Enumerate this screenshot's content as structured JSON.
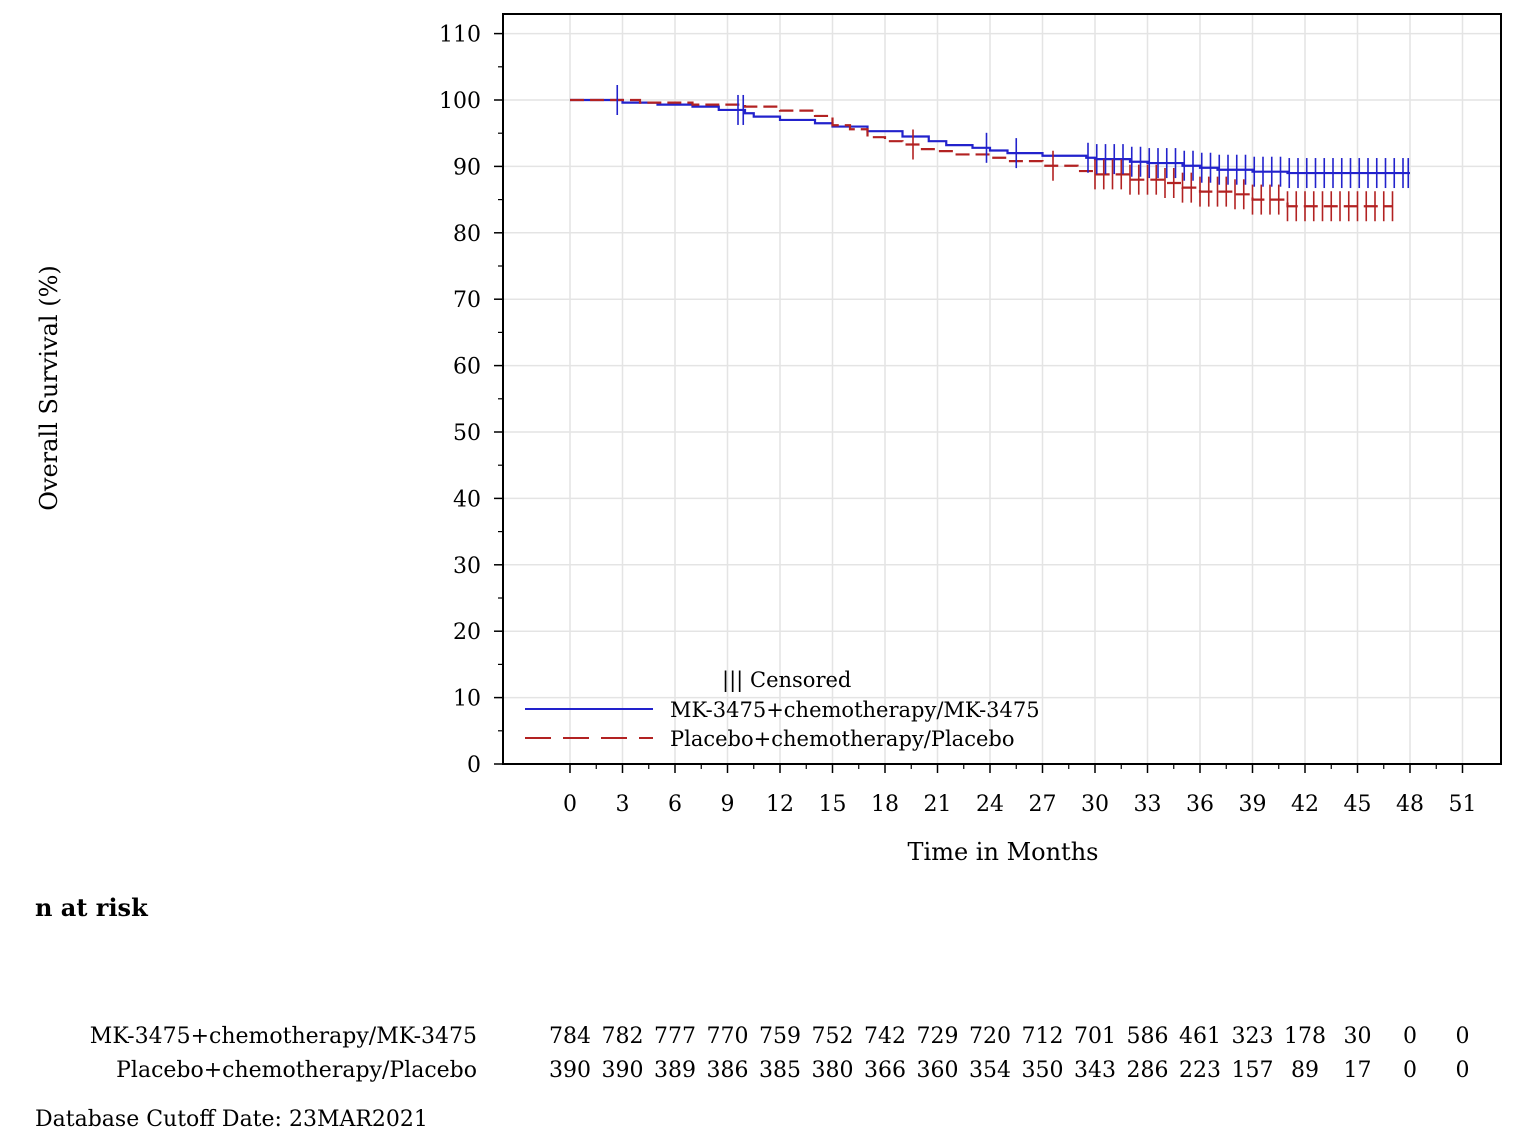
{
  "chart_data": {
    "type": "line",
    "subtype": "kaplan-meier",
    "xlabel": "Time in Months",
    "ylabel": "Overall Survival (%)",
    "xlim": [
      -5,
      54
    ],
    "ylim": [
      0,
      110
    ],
    "xticks": [
      0,
      3,
      6,
      9,
      12,
      15,
      18,
      21,
      24,
      27,
      30,
      33,
      36,
      39,
      42,
      45,
      48,
      51
    ],
    "yticks": [
      0,
      10,
      20,
      30,
      40,
      50,
      60,
      70,
      80,
      90,
      100,
      110
    ],
    "grid": true,
    "legend_placement": "bottom-left",
    "censored_label": "Censored",
    "series": [
      {
        "name": "MK-3475+chemotherapy/MK-3475",
        "color": "#2222cc",
        "line_style": "solid",
        "x": [
          0,
          3,
          5,
          7,
          8.5,
          10,
          10.5,
          12,
          14,
          15,
          17,
          19,
          20.5,
          21.5,
          23,
          24,
          25,
          27,
          29.5,
          30,
          32,
          33,
          35,
          36,
          37,
          39,
          41,
          48
        ],
        "y": [
          100,
          99.6,
          99.3,
          99,
          98.5,
          98,
          97.5,
          97,
          96.5,
          96,
          95.3,
          94.5,
          93.8,
          93.2,
          92.8,
          92.4,
          92,
          91.6,
          91.3,
          91.1,
          90.7,
          90.5,
          90.1,
          89.8,
          89.5,
          89.2,
          89,
          89
        ],
        "censor_x": [
          2.7,
          9.6,
          9.9,
          23.8,
          25.5,
          29.6,
          30.1,
          30.6,
          31.1,
          31.6,
          32.1,
          32.6,
          33.1,
          33.6,
          34.1,
          34.6,
          35.1,
          35.6,
          36.1,
          36.6,
          37.1,
          37.6,
          38.1,
          38.6,
          39.1,
          39.6,
          40.1,
          40.6,
          41.1,
          41.6,
          42.1,
          42.6,
          43.1,
          43.6,
          44.1,
          44.6,
          45.1,
          45.6,
          46.1,
          46.6,
          47.1,
          47.6,
          47.9
        ]
      },
      {
        "name": "Placebo+chemotherapy/Placebo",
        "color": "#b22222",
        "line_style": "dashed",
        "x": [
          0,
          4,
          7,
          10,
          12,
          14,
          15,
          16,
          17,
          18,
          19,
          20,
          21,
          22,
          24,
          25,
          27,
          29,
          30,
          32,
          34,
          35,
          36,
          38,
          39,
          41,
          47
        ],
        "y": [
          100,
          99.6,
          99.3,
          99,
          98.4,
          97.6,
          96.2,
          95.6,
          94.4,
          93.8,
          93.3,
          92.6,
          92.3,
          91.8,
          91.3,
          90.8,
          90.1,
          89.3,
          88.8,
          88,
          87.5,
          86.8,
          86.2,
          85.8,
          85,
          84,
          84
        ],
        "censor_x": [
          19.6,
          27.6,
          30.0,
          30.5,
          31.0,
          31.5,
          32.0,
          32.5,
          33.0,
          33.5,
          34.0,
          34.5,
          35.0,
          35.5,
          36.0,
          36.5,
          37.0,
          37.5,
          38.0,
          38.5,
          39.0,
          39.5,
          40.0,
          40.5,
          41.0,
          41.5,
          42.0,
          42.5,
          43.0,
          43.5,
          44.0,
          44.5,
          45.0,
          45.5,
          46.0,
          46.5,
          47.0
        ]
      }
    ]
  },
  "risk_table": {
    "title": "n at risk",
    "rows": [
      {
        "label": "MK-3475+chemotherapy/MK-3475",
        "values": [
          "784",
          "782",
          "777",
          "770",
          "759",
          "752",
          "742",
          "729",
          "720",
          "712",
          "701",
          "586",
          "461",
          "323",
          "178",
          "30",
          "0",
          "0"
        ]
      },
      {
        "label": "Placebo+chemotherapy/Placebo",
        "values": [
          "390",
          "390",
          "389",
          "386",
          "385",
          "380",
          "366",
          "360",
          "354",
          "350",
          "343",
          "286",
          "223",
          "157",
          "89",
          "17",
          "0",
          "0"
        ]
      }
    ]
  },
  "footer": {
    "cutoff": "Database Cutoff Date: 23MAR2021"
  }
}
